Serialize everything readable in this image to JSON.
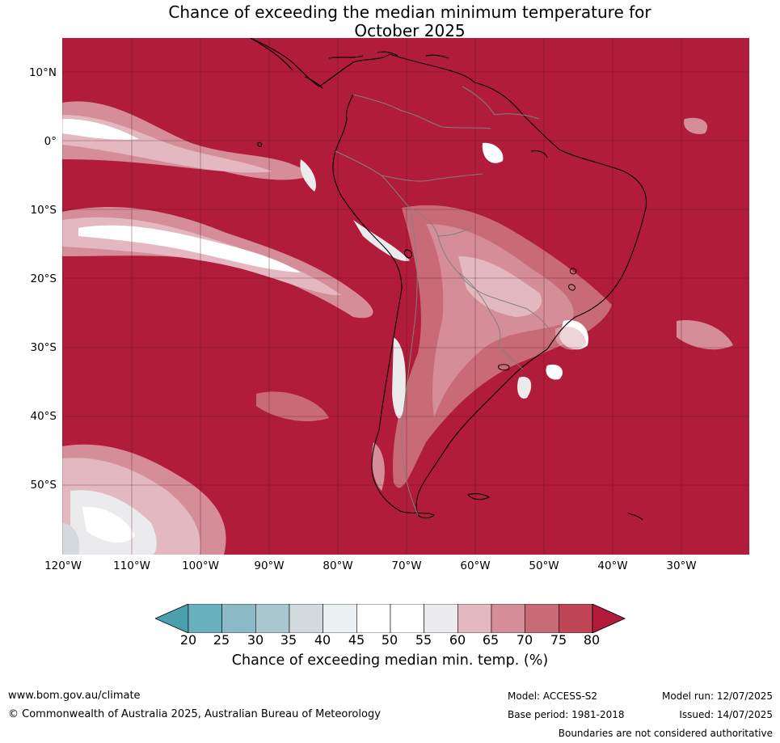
{
  "title_line1": "Chance of exceeding the median minimum temperature for",
  "title_line2": "October 2025",
  "latitude_labels": [
    "10°N",
    "0°",
    "10°S",
    "20°S",
    "30°S",
    "40°S",
    "50°S"
  ],
  "longitude_labels": [
    "120°W",
    "110°W",
    "100°W",
    "90°W",
    "80°W",
    "70°W",
    "60°W",
    "50°W",
    "40°W",
    "30°W"
  ],
  "colorbar": {
    "ticks": [
      "20",
      "25",
      "30",
      "35",
      "40",
      "45",
      "50",
      "55",
      "60",
      "65",
      "70",
      "75",
      "80"
    ],
    "colors": [
      "#4aa0ae",
      "#6aafbe",
      "#8bbac6",
      "#a8c8cf",
      "#d2dadd",
      "#ebf0f2",
      "#ffffff",
      "#ffffff",
      "#ebeaec",
      "#e3b8c0",
      "#d58d98",
      "#c86b77",
      "#bf4656",
      "#b01c39"
    ],
    "label": "Chance of exceeding median min. temp. (%)"
  },
  "colors": {
    "map_base": "#b01c39",
    "grid": "#5a1020",
    "coast": "#000000",
    "borders": "#808080"
  },
  "footer": {
    "website": "www.bom.gov.au/climate",
    "copyright": "© Commonwealth of Australia 2025, Australian Bureau of Meteorology",
    "model": "Model: ACCESS-S2",
    "base_period": "Base period: 1981-2018",
    "model_run": "Model run: 12/07/2025",
    "issued": "Issued: 14/07/2025",
    "disclaimer": "Boundaries are not considered authoritative"
  }
}
